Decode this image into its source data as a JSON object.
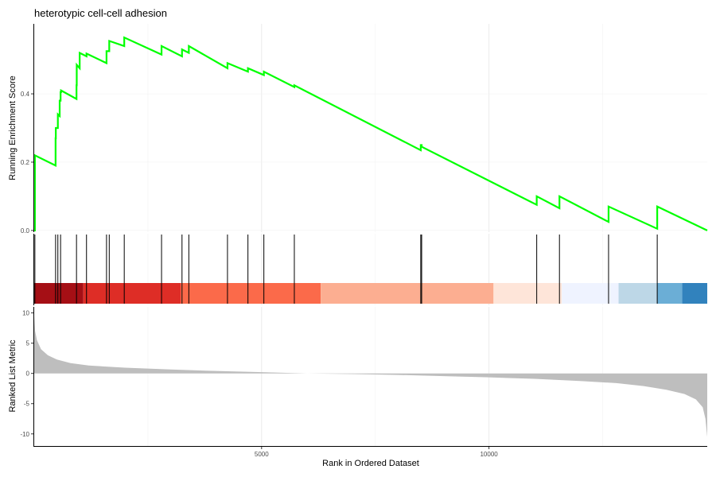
{
  "chart_data": {
    "type": "line",
    "title": "heterotypic cell-cell adhesion",
    "xlabel": "Rank in Ordered Dataset",
    "xlim": [
      0,
      14800
    ],
    "x_ticks": [
      {
        "value": 5000,
        "label": "5000"
      },
      {
        "value": 10000,
        "label": "10000"
      }
    ],
    "panels": {
      "enrichment": {
        "ylabel": "Running Enrichment Score",
        "ylim": [
          -0.005,
          0.605
        ],
        "y_ticks": [
          {
            "value": 0.0,
            "label": "0.0"
          },
          {
            "value": 0.2,
            "label": "0.2"
          },
          {
            "value": 0.4,
            "label": "0.4"
          }
        ],
        "line_color": "#00ff00",
        "series": {
          "x": [
            0,
            15,
            15,
            470,
            470,
            475,
            475,
            520,
            520,
            560,
            560,
            580,
            580,
            590,
            590,
            930,
            930,
            935,
            935,
            1000,
            1000,
            1150,
            1150,
            1590,
            1590,
            1620,
            1620,
            1650,
            1650,
            1980,
            1980,
            2800,
            2800,
            3250,
            3250,
            3400,
            3400,
            4250,
            4250,
            4700,
            4700,
            5050,
            5050,
            5720,
            5720,
            8500,
            8500,
            8520,
            8520,
            11050,
            11050,
            11550,
            11550,
            12630,
            12630,
            13700,
            13700,
            14800
          ],
          "y": [
            0.0,
            0.0,
            0.22,
            0.19,
            0.27,
            0.27,
            0.3,
            0.3,
            0.34,
            0.335,
            0.38,
            0.38,
            0.405,
            0.405,
            0.41,
            0.385,
            0.425,
            0.425,
            0.485,
            0.475,
            0.52,
            0.51,
            0.518,
            0.49,
            0.525,
            0.525,
            0.525,
            0.525,
            0.555,
            0.54,
            0.565,
            0.515,
            0.54,
            0.51,
            0.53,
            0.52,
            0.54,
            0.475,
            0.49,
            0.465,
            0.475,
            0.455,
            0.465,
            0.42,
            0.425,
            0.235,
            0.25,
            0.25,
            0.245,
            0.075,
            0.1,
            0.065,
            0.1,
            0.025,
            0.07,
            0.005,
            0.07,
            0.0
          ]
        }
      },
      "hits": {
        "positions": [
          15,
          470,
          520,
          580,
          930,
          1150,
          1590,
          1650,
          1980,
          2800,
          3250,
          3400,
          4250,
          4700,
          5050,
          5720,
          8500,
          8520,
          11050,
          11550,
          12630,
          13700
        ],
        "color_bands": [
          {
            "from": 0,
            "to": 1080,
            "color": "#a50f15"
          },
          {
            "from": 1080,
            "to": 3220,
            "color": "#de2d26"
          },
          {
            "from": 3220,
            "to": 6300,
            "color": "#fb6a4a"
          },
          {
            "from": 6300,
            "to": 10100,
            "color": "#fcae91"
          },
          {
            "from": 10100,
            "to": 11600,
            "color": "#fee5d9"
          },
          {
            "from": 11600,
            "to": 12850,
            "color": "#eff3ff"
          },
          {
            "from": 12850,
            "to": 13700,
            "color": "#bdd7e7"
          },
          {
            "from": 13700,
            "to": 14250,
            "color": "#6baed6"
          },
          {
            "from": 14250,
            "to": 14800,
            "color": "#3182bd"
          }
        ]
      },
      "ranked": {
        "ylabel": "Ranked List Metric",
        "ylim": [
          -12,
          11
        ],
        "y_ticks": [
          {
            "value": 10,
            "label": "10"
          },
          {
            "value": 5,
            "label": "5"
          },
          {
            "value": 0,
            "label": "0"
          },
          {
            "value": -5,
            "label": "-5"
          },
          {
            "value": -10,
            "label": "-10"
          }
        ],
        "fill_color": "#bebebe",
        "series": {
          "x": [
            0,
            20,
            60,
            150,
            300,
            500,
            800,
            1200,
            2000,
            3000,
            4000,
            5000,
            6000,
            7000,
            8000,
            9000,
            10000,
            11000,
            12000,
            12800,
            13400,
            13900,
            14300,
            14550,
            14700,
            14760,
            14800
          ],
          "y": [
            9.5,
            7.0,
            5.5,
            4.0,
            3.0,
            2.3,
            1.7,
            1.3,
            0.95,
            0.65,
            0.4,
            0.2,
            0.0,
            -0.1,
            -0.25,
            -0.45,
            -0.65,
            -0.9,
            -1.25,
            -1.6,
            -2.1,
            -2.7,
            -3.4,
            -4.3,
            -5.6,
            -7.5,
            -10.5
          ]
        }
      }
    },
    "grid": true
  }
}
